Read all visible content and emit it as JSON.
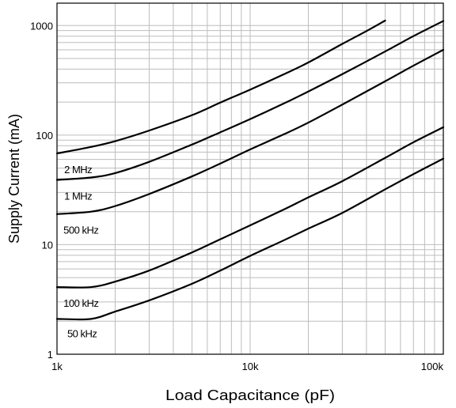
{
  "chart_data": {
    "type": "line",
    "title": "",
    "xlabel": "Load Capacitance (pF)",
    "ylabel": "Supply Current (mA)",
    "xscale": "log",
    "yscale": "log",
    "xlim": [
      1000,
      100000
    ],
    "ylim": [
      1,
      1600
    ],
    "grid": true,
    "legend": "inline",
    "x_ticks": [
      {
        "value": 1000,
        "label": "1k"
      },
      {
        "value": 10000,
        "label": "10k"
      },
      {
        "value": 100000,
        "label": "100k"
      }
    ],
    "y_ticks": [
      {
        "value": 1,
        "label": "1"
      },
      {
        "value": 10,
        "label": "10"
      },
      {
        "value": 100,
        "label": "100"
      },
      {
        "value": 1000,
        "label": "1000"
      }
    ],
    "series": [
      {
        "name": "2 MHz",
        "points": [
          [
            1000,
            68
          ],
          [
            1500,
            78
          ],
          [
            2000,
            88
          ],
          [
            3000,
            110
          ],
          [
            5000,
            152
          ],
          [
            7000,
            198
          ],
          [
            10000,
            260
          ],
          [
            15000,
            360
          ],
          [
            20000,
            460
          ],
          [
            30000,
            680
          ],
          [
            40000,
            890
          ],
          [
            50000,
            1110
          ]
        ]
      },
      {
        "name": "1 MHz",
        "points": [
          [
            1000,
            39
          ],
          [
            1500,
            41
          ],
          [
            2000,
            45
          ],
          [
            3000,
            57
          ],
          [
            5000,
            82
          ],
          [
            7000,
            106
          ],
          [
            10000,
            140
          ],
          [
            15000,
            195
          ],
          [
            20000,
            250
          ],
          [
            30000,
            360
          ],
          [
            50000,
            580
          ],
          [
            70000,
            800
          ],
          [
            100000,
            1100
          ]
        ]
      },
      {
        "name": "500 kHz",
        "points": [
          [
            1000,
            19
          ],
          [
            1500,
            20
          ],
          [
            2000,
            22.5
          ],
          [
            3000,
            29
          ],
          [
            5000,
            42
          ],
          [
            7000,
            55
          ],
          [
            10000,
            74
          ],
          [
            15000,
            102
          ],
          [
            20000,
            130
          ],
          [
            30000,
            190
          ],
          [
            50000,
            310
          ],
          [
            70000,
            430
          ],
          [
            100000,
            600
          ]
        ]
      },
      {
        "name": "100 kHz",
        "points": [
          [
            1000,
            4.1
          ],
          [
            1500,
            4.1
          ],
          [
            2000,
            4.6
          ],
          [
            3000,
            5.8
          ],
          [
            5000,
            8.5
          ],
          [
            7000,
            11.2
          ],
          [
            10000,
            15
          ],
          [
            15000,
            21
          ],
          [
            20000,
            27
          ],
          [
            30000,
            38
          ],
          [
            50000,
            62
          ],
          [
            70000,
            86
          ],
          [
            100000,
            118
          ]
        ]
      },
      {
        "name": "50 kHz",
        "points": [
          [
            1000,
            2.1
          ],
          [
            1500,
            2.1
          ],
          [
            2000,
            2.45
          ],
          [
            3000,
            3.1
          ],
          [
            5000,
            4.4
          ],
          [
            7000,
            5.8
          ],
          [
            10000,
            7.9
          ],
          [
            15000,
            11
          ],
          [
            20000,
            14
          ],
          [
            30000,
            19.5
          ],
          [
            50000,
            32
          ],
          [
            70000,
            44
          ],
          [
            100000,
            61
          ]
        ]
      }
    ],
    "series_labels": [
      {
        "text": "2 MHz",
        "at": [
          1090,
          49
        ]
      },
      {
        "text": "1 MHz",
        "at": [
          1090,
          28
        ]
      },
      {
        "text": "500 kHz",
        "at": [
          1080,
          13.7
        ]
      },
      {
        "text": "100 kHz",
        "at": [
          1080,
          2.95
        ]
      },
      {
        "text": "50 kHz",
        "at": [
          1130,
          1.55
        ]
      }
    ]
  }
}
